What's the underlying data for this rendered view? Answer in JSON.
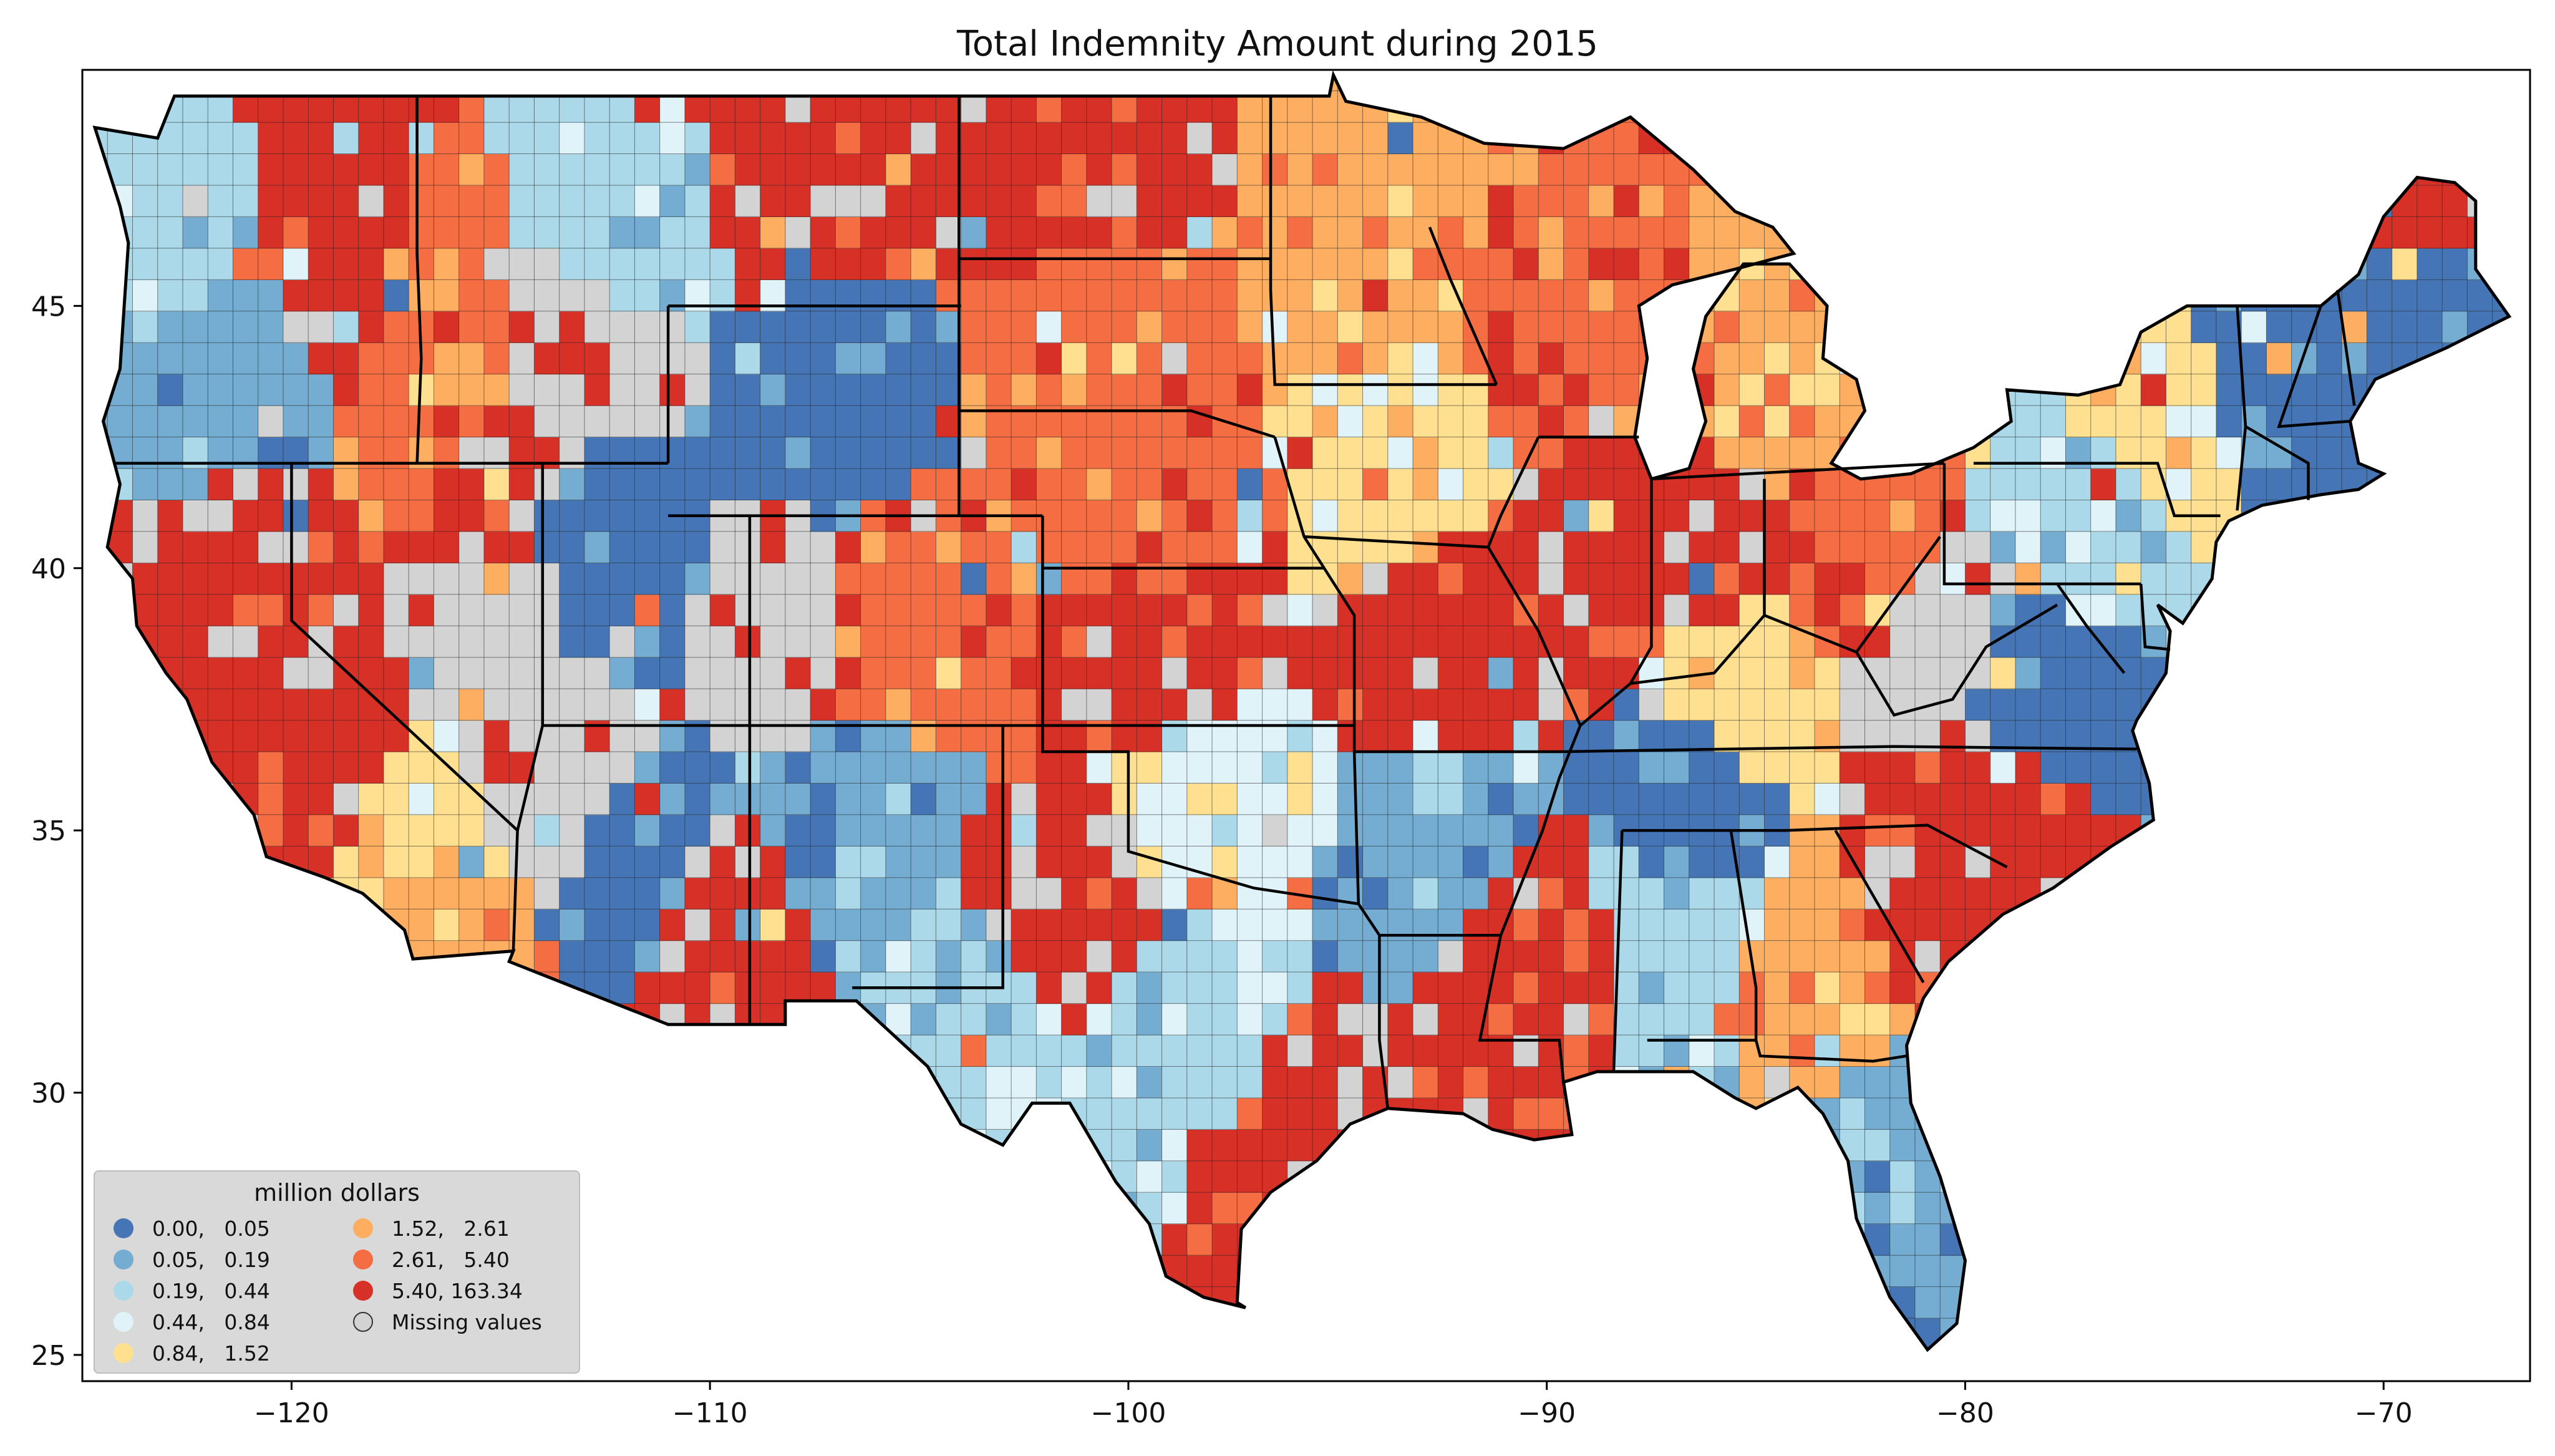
{
  "title": "Total Indemnity Amount during 2015",
  "map": {
    "projection": "plate-carree",
    "lon_range": [
      -125,
      -66.5
    ],
    "lat_range": [
      24.5,
      49.5
    ],
    "x_ticks": [
      {
        "value": -120,
        "label": "−120"
      },
      {
        "value": -110,
        "label": "−110"
      },
      {
        "value": -100,
        "label": "−100"
      },
      {
        "value": -90,
        "label": "−90"
      },
      {
        "value": -80,
        "label": "−80"
      },
      {
        "value": -70,
        "label": "−70"
      }
    ],
    "y_ticks": [
      {
        "value": 25,
        "label": "25"
      },
      {
        "value": 30,
        "label": "30"
      },
      {
        "value": 35,
        "label": "35"
      },
      {
        "value": 40,
        "label": "40"
      },
      {
        "value": 45,
        "label": "45"
      }
    ],
    "missing_color": "#d3d3d3"
  },
  "legend": {
    "title": "million dollars",
    "placement": "lower-left",
    "bins": [
      {
        "label": "0.00,   0.05",
        "color": "#4575b4"
      },
      {
        "label": "0.05,   0.19",
        "color": "#74add1"
      },
      {
        "label": "0.19,   0.44",
        "color": "#abd9e9"
      },
      {
        "label": "0.44,   0.84",
        "color": "#e0f3f8"
      },
      {
        "label": "0.84,   1.52",
        "color": "#fee090"
      },
      {
        "label": "1.52,   2.61",
        "color": "#fdae61"
      },
      {
        "label": "2.61,   5.40",
        "color": "#f46d43"
      },
      {
        "label": "5.40, 163.34",
        "color": "#d73027"
      },
      {
        "label": "Missing values",
        "color": "#d3d3d3"
      }
    ]
  },
  "regions": [
    {
      "lon": -119.5,
      "lat": 47.2,
      "bin": 7
    },
    {
      "lon": -122.5,
      "lat": 47.0,
      "bin": 2
    },
    {
      "lon": -118.5,
      "lat": 45.5,
      "bin": 7
    },
    {
      "lon": -117.0,
      "lat": 45.0,
      "bin": 6
    },
    {
      "lon": -121.5,
      "lat": 43.5,
      "bin": 1
    },
    {
      "lon": -121.0,
      "lat": 40.0,
      "bin": 7
    },
    {
      "lon": -119.5,
      "lat": 36.5,
      "bin": 7
    },
    {
      "lon": -117.0,
      "lat": 34.8,
      "bin": 4
    },
    {
      "lon": -116.5,
      "lat": 33.0,
      "bin": 5
    },
    {
      "lon": -116.5,
      "lat": 42.5,
      "bin": 6
    },
    {
      "lon": -115.5,
      "lat": 41.5,
      "bin": 7
    },
    {
      "lon": -115.0,
      "lat": 39.0,
      "bin": 8
    },
    {
      "lon": -112.5,
      "lat": 40.5,
      "bin": 0
    },
    {
      "lon": -111.5,
      "lat": 34.0,
      "bin": 0
    },
    {
      "lon": -110.0,
      "lat": 33.0,
      "bin": 7
    },
    {
      "lon": -112.0,
      "lat": 46.5,
      "bin": 2
    },
    {
      "lon": -108.0,
      "lat": 47.5,
      "bin": 7
    },
    {
      "lon": -107.5,
      "lat": 43.0,
      "bin": 0
    },
    {
      "lon": -105.5,
      "lat": 39.0,
      "bin": 6
    },
    {
      "lon": -106.5,
      "lat": 35.0,
      "bin": 1
    },
    {
      "lon": -101.0,
      "lat": 47.5,
      "bin": 7
    },
    {
      "lon": -100.5,
      "lat": 44.5,
      "bin": 6
    },
    {
      "lon": -99.5,
      "lat": 41.5,
      "bin": 6
    },
    {
      "lon": -99.0,
      "lat": 38.5,
      "bin": 7
    },
    {
      "lon": -98.0,
      "lat": 35.5,
      "bin": 3
    },
    {
      "lon": -101.5,
      "lat": 33.5,
      "bin": 7
    },
    {
      "lon": -98.5,
      "lat": 31.0,
      "bin": 2
    },
    {
      "lon": -96.0,
      "lat": 29.0,
      "bin": 7
    },
    {
      "lon": -94.5,
      "lat": 46.0,
      "bin": 5
    },
    {
      "lon": -93.5,
      "lat": 42.0,
      "bin": 4
    },
    {
      "lon": -92.5,
      "lat": 38.5,
      "bin": 7
    },
    {
      "lon": -92.5,
      "lat": 34.5,
      "bin": 1
    },
    {
      "lon": -90.5,
      "lat": 32.5,
      "bin": 7
    },
    {
      "lon": -89.5,
      "lat": 44.5,
      "bin": 6
    },
    {
      "lon": -89.0,
      "lat": 40.0,
      "bin": 7
    },
    {
      "lon": -86.5,
      "lat": 40.5,
      "bin": 7
    },
    {
      "lon": -84.5,
      "lat": 43.5,
      "bin": 5
    },
    {
      "lon": -82.5,
      "lat": 40.5,
      "bin": 6
    },
    {
      "lon": -85.5,
      "lat": 37.5,
      "bin": 4
    },
    {
      "lon": -86.5,
      "lat": 35.8,
      "bin": 0
    },
    {
      "lon": -86.8,
      "lat": 32.8,
      "bin": 2
    },
    {
      "lon": -83.5,
      "lat": 32.5,
      "bin": 5
    },
    {
      "lon": -81.5,
      "lat": 28.5,
      "bin": 1
    },
    {
      "lon": -79.5,
      "lat": 35.5,
      "bin": 7
    },
    {
      "lon": -81.0,
      "lat": 33.8,
      "bin": 7
    },
    {
      "lon": -80.5,
      "lat": 38.5,
      "bin": 8
    },
    {
      "lon": -78.5,
      "lat": 37.5,
      "bin": 0
    },
    {
      "lon": -77.5,
      "lat": 41.0,
      "bin": 2
    },
    {
      "lon": -75.5,
      "lat": 43.0,
      "bin": 4
    },
    {
      "lon": -72.5,
      "lat": 44.0,
      "bin": 0
    },
    {
      "lon": -69.0,
      "lat": 45.5,
      "bin": 0
    },
    {
      "lon": -68.8,
      "lat": 46.8,
      "bin": 7
    },
    {
      "lon": -103.5,
      "lat": 31.5,
      "bin": 2
    },
    {
      "lon": -108.0,
      "lat": 39.0,
      "bin": 8
    },
    {
      "lon": -114.0,
      "lat": 36.0,
      "bin": 8
    },
    {
      "lon": -113.0,
      "lat": 44.0,
      "bin": 8
    }
  ]
}
